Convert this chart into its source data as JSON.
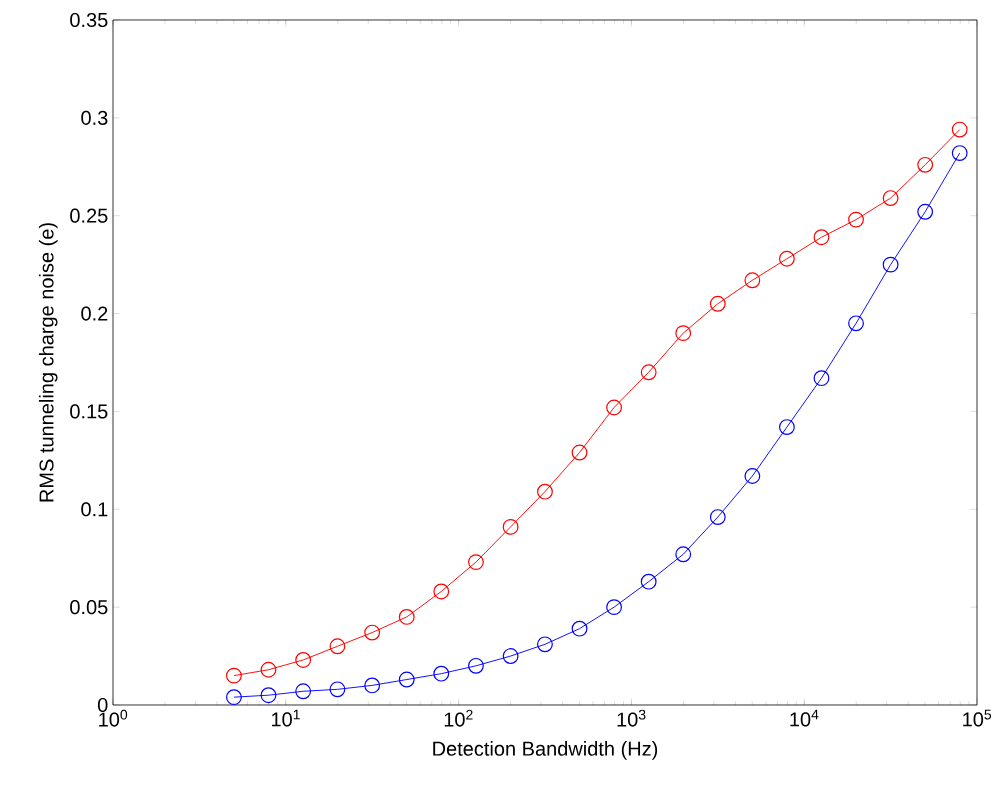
{
  "chart_data": {
    "type": "line",
    "xlabel": "Detection Bandwidth (Hz)",
    "ylabel": "RMS tunneling charge noise (e)",
    "log": "x",
    "marker": "circle",
    "line_style": "solid",
    "x": [
      5.01,
      7.94,
      12.6,
      19.9,
      31.6,
      50.1,
      79.4,
      126,
      200,
      316,
      501,
      794,
      1259,
      1995,
      3162,
      5012,
      7943,
      12589,
      19953,
      31623,
      50119,
      79433
    ],
    "series": [
      {
        "color": "#ff0000",
        "values": [
          0.015,
          0.018,
          0.023,
          0.03,
          0.037,
          0.045,
          0.058,
          0.073,
          0.091,
          0.109,
          0.129,
          0.152,
          0.17,
          0.19,
          0.205,
          0.217,
          0.228,
          0.239,
          0.248,
          0.259,
          0.276,
          0.294
        ]
      },
      {
        "color": "#0000ff",
        "values": [
          0.004,
          0.005,
          0.007,
          0.008,
          0.01,
          0.013,
          0.016,
          0.02,
          0.025,
          0.031,
          0.039,
          0.05,
          0.063,
          0.077,
          0.096,
          0.117,
          0.142,
          0.167,
          0.195,
          0.225,
          0.252,
          0.282
        ]
      }
    ],
    "xlim": [
      1,
      100000
    ],
    "ylim": [
      0,
      0.35
    ],
    "xticks": [
      {
        "value": 1,
        "label": "10$^{0}$"
      },
      {
        "value": 10,
        "label": "10$^{1}$"
      },
      {
        "value": 100,
        "label": "10$^{2}$"
      },
      {
        "value": 1000,
        "label": "10$^{3}$"
      },
      {
        "value": 10000,
        "label": "10$^{4}$"
      },
      {
        "value": 100000,
        "label": "10$^{5}$"
      }
    ],
    "yticks": [
      0,
      0.05,
      0.1,
      0.15,
      0.2,
      0.25,
      0.3,
      0.35
    ]
  }
}
